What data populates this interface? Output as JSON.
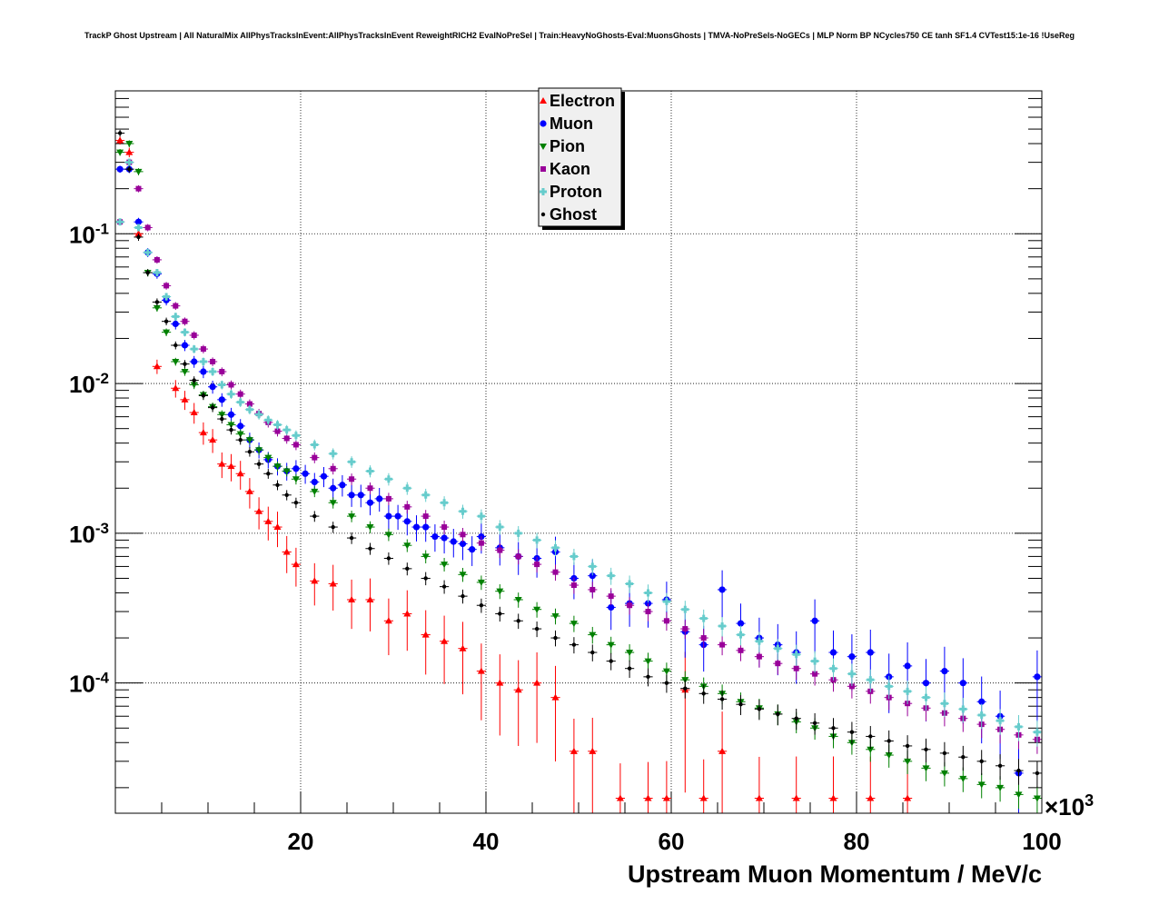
{
  "chart_data": {
    "type": "scatter",
    "title": "TrackP Ghost Upstream | All NaturalMix AllPhysTracksInEvent:AllPhysTracksInEvent ReweightRICH2 EvalNoPreSel | Train:HeavyNoGhosts-Eval:MuonsGhosts | TMVA-NoPreSels-NoGECs | MLP Norm BP NCycles750 CE tanh SF1.4 CVTest15:1e-16 !UseReg",
    "xlabel": "Upstream Muon Momentum / MeV/c",
    "x_multiplier_label": "×10",
    "x_multiplier_exponent": "3",
    "xlim": [
      0,
      100000
    ],
    "ylim": [
      1.35e-05,
      0.9
    ],
    "yscale": "log",
    "grid": true,
    "legend_position": "top-center",
    "x_ticks": [
      {
        "value": 20000,
        "label": "20"
      },
      {
        "value": 40000,
        "label": "40"
      },
      {
        "value": 60000,
        "label": "60"
      },
      {
        "value": 80000,
        "label": "80"
      },
      {
        "value": 100000,
        "label": "100"
      }
    ],
    "y_ticks": [
      {
        "value": 0.1,
        "base": "10",
        "exp": "-1"
      },
      {
        "value": 0.01,
        "base": "10",
        "exp": "-2"
      },
      {
        "value": 0.001,
        "base": "10",
        "exp": "-3"
      },
      {
        "value": 0.0001,
        "base": "10",
        "exp": "-4"
      }
    ],
    "series": [
      {
        "name": "Electron",
        "color": "#ff0000",
        "marker": "triangle-up",
        "x": [
          1000,
          2000,
          3000,
          5000,
          7000,
          8000,
          9000,
          10000,
          11000,
          12000,
          13000,
          14000,
          15000,
          16000,
          17000,
          18000,
          19000,
          20000,
          22000,
          24000,
          26000,
          28000,
          30000,
          32000,
          34000,
          36000,
          38000,
          40000,
          42000,
          44000,
          46000,
          48000,
          50000,
          52000,
          55000,
          58000,
          60000,
          62000,
          64000,
          66000,
          70000,
          74000,
          78000,
          82000,
          86000
        ],
        "y": [
          0.42,
          0.35,
          0.1,
          0.013,
          0.0093,
          0.0078,
          0.0064,
          0.0047,
          0.0042,
          0.0029,
          0.0028,
          0.0025,
          0.0019,
          0.0014,
          0.0012,
          0.0011,
          0.00075,
          0.00062,
          0.00048,
          0.00046,
          0.00036,
          0.00036,
          0.00026,
          0.00029,
          0.00021,
          0.00019,
          0.00017,
          0.00012,
          0.0001,
          9e-05,
          0.0001,
          8e-05,
          3.5e-05,
          3.5e-05,
          1.7e-05,
          1.7e-05,
          1.7e-05,
          9e-05,
          1.7e-05,
          3.5e-05,
          1.7e-05,
          1.7e-05,
          1.7e-05,
          1.7e-05,
          1.7e-05
        ]
      },
      {
        "name": "Muon",
        "color": "#0000ff",
        "marker": "circle",
        "x": [
          1000,
          2000,
          3000,
          4000,
          5000,
          6000,
          7000,
          8000,
          9000,
          10000,
          11000,
          12000,
          13000,
          14000,
          15000,
          16000,
          17000,
          18000,
          19000,
          20000,
          21000,
          22000,
          23000,
          24000,
          25000,
          26000,
          27000,
          28000,
          29000,
          30000,
          31000,
          32000,
          33000,
          34000,
          35000,
          36000,
          37000,
          38000,
          39000,
          40000,
          42000,
          44000,
          46000,
          48000,
          50000,
          52000,
          54000,
          56000,
          58000,
          60000,
          62000,
          64000,
          66000,
          68000,
          70000,
          72000,
          74000,
          76000,
          78000,
          80000,
          82000,
          84000,
          86000,
          88000,
          90000,
          92000,
          94000,
          96000,
          98000,
          100000
        ],
        "y": [
          0.27,
          0.27,
          0.12,
          0.075,
          0.054,
          0.036,
          0.025,
          0.018,
          0.014,
          0.012,
          0.0095,
          0.0078,
          0.0062,
          0.0052,
          0.0042,
          0.0036,
          0.0031,
          0.0028,
          0.0026,
          0.0027,
          0.0025,
          0.0022,
          0.0024,
          0.002,
          0.0021,
          0.0018,
          0.0018,
          0.0016,
          0.0017,
          0.0013,
          0.0013,
          0.0012,
          0.0011,
          0.0011,
          0.00095,
          0.00093,
          0.00088,
          0.00085,
          0.00078,
          0.00095,
          0.0008,
          0.0007,
          0.00068,
          0.00075,
          0.0005,
          0.00052,
          0.00032,
          0.00034,
          0.00034,
          0.00036,
          0.00022,
          0.00018,
          0.00042,
          0.00025,
          0.0002,
          0.00018,
          0.00016,
          0.00026,
          0.00016,
          0.00015,
          0.00016,
          0.00011,
          0.00013,
          0.0001,
          0.00012,
          0.0001,
          7.5e-05,
          6e-05,
          2.5e-05,
          0.00011
        ]
      },
      {
        "name": "Pion",
        "color": "#008000",
        "marker": "triangle-down",
        "x": [
          1000,
          2000,
          3000,
          4000,
          5000,
          6000,
          7000,
          8000,
          9000,
          10000,
          11000,
          12000,
          13000,
          14000,
          15000,
          16000,
          17000,
          18000,
          19000,
          20000,
          22000,
          24000,
          26000,
          28000,
          30000,
          32000,
          34000,
          36000,
          38000,
          40000,
          42000,
          44000,
          46000,
          48000,
          50000,
          52000,
          54000,
          56000,
          58000,
          60000,
          62000,
          64000,
          66000,
          68000,
          70000,
          72000,
          74000,
          76000,
          78000,
          80000,
          82000,
          84000,
          86000,
          88000,
          90000,
          92000,
          94000,
          96000,
          98000,
          100000
        ],
        "y": [
          0.35,
          0.4,
          0.26,
          0.055,
          0.032,
          0.022,
          0.014,
          0.012,
          0.0098,
          0.0084,
          0.007,
          0.0062,
          0.0053,
          0.0046,
          0.0042,
          0.0036,
          0.0032,
          0.0028,
          0.0026,
          0.0023,
          0.0019,
          0.0016,
          0.0013,
          0.0011,
          0.00098,
          0.00083,
          0.0007,
          0.00062,
          0.00053,
          0.00047,
          0.00041,
          0.00036,
          0.00031,
          0.00028,
          0.00025,
          0.00021,
          0.00018,
          0.00016,
          0.00014,
          0.00012,
          0.000105,
          9.5e-05,
          8.5e-05,
          7.5e-05,
          6.8e-05,
          6.2e-05,
          5.5e-05,
          5e-05,
          4.4e-05,
          4e-05,
          3.6e-05,
          3.3e-05,
          3e-05,
          2.7e-05,
          2.5e-05,
          2.3e-05,
          2.1e-05,
          2e-05,
          1.8e-05,
          1.7e-05
        ]
      },
      {
        "name": "Kaon",
        "color": "#990099",
        "marker": "square",
        "x": [
          1000,
          2000,
          3000,
          4000,
          5000,
          6000,
          7000,
          8000,
          9000,
          10000,
          11000,
          12000,
          13000,
          14000,
          15000,
          16000,
          17000,
          18000,
          19000,
          20000,
          22000,
          24000,
          26000,
          28000,
          30000,
          32000,
          34000,
          36000,
          38000,
          40000,
          42000,
          44000,
          46000,
          48000,
          50000,
          52000,
          54000,
          56000,
          58000,
          60000,
          62000,
          64000,
          66000,
          68000,
          70000,
          72000,
          74000,
          76000,
          78000,
          80000,
          82000,
          84000,
          86000,
          88000,
          90000,
          92000,
          94000,
          96000,
          98000,
          100000
        ],
        "y": [
          0.12,
          0.3,
          0.2,
          0.11,
          0.067,
          0.045,
          0.033,
          0.026,
          0.021,
          0.017,
          0.014,
          0.012,
          0.0098,
          0.0085,
          0.0073,
          0.0063,
          0.0055,
          0.0048,
          0.0043,
          0.0039,
          0.0032,
          0.0027,
          0.0023,
          0.002,
          0.0017,
          0.0015,
          0.0013,
          0.0011,
          0.00098,
          0.00086,
          0.00077,
          0.0007,
          0.00062,
          0.00055,
          0.00045,
          0.00042,
          0.00038,
          0.00033,
          0.0003,
          0.00026,
          0.00023,
          0.0002,
          0.00018,
          0.000165,
          0.00015,
          0.000135,
          0.000125,
          0.000115,
          0.000105,
          9.5e-05,
          8.8e-05,
          8e-05,
          7.3e-05,
          6.8e-05,
          6.3e-05,
          5.8e-05,
          5.3e-05,
          4.9e-05,
          4.5e-05,
          4.2e-05
        ]
      },
      {
        "name": "Proton",
        "color": "#66cccc",
        "marker": "cross",
        "x": [
          1000,
          2000,
          3000,
          4000,
          5000,
          6000,
          7000,
          8000,
          9000,
          10000,
          11000,
          12000,
          13000,
          14000,
          15000,
          16000,
          17000,
          18000,
          19000,
          20000,
          22000,
          24000,
          26000,
          28000,
          30000,
          32000,
          34000,
          36000,
          38000,
          40000,
          42000,
          44000,
          46000,
          48000,
          50000,
          52000,
          54000,
          56000,
          58000,
          60000,
          62000,
          64000,
          66000,
          68000,
          70000,
          72000,
          74000,
          76000,
          78000,
          80000,
          82000,
          84000,
          86000,
          88000,
          90000,
          92000,
          94000,
          96000,
          98000,
          100000
        ],
        "y": [
          0.12,
          0.3,
          0.11,
          0.075,
          0.055,
          0.038,
          0.028,
          0.022,
          0.017,
          0.014,
          0.012,
          0.0098,
          0.0085,
          0.0075,
          0.0067,
          0.0062,
          0.0057,
          0.0053,
          0.0049,
          0.0045,
          0.0039,
          0.0034,
          0.003,
          0.0026,
          0.0023,
          0.002,
          0.0018,
          0.0016,
          0.0014,
          0.0013,
          0.0011,
          0.001,
          0.0009,
          0.0008,
          0.0007,
          0.0006,
          0.00052,
          0.00046,
          0.0004,
          0.00035,
          0.00031,
          0.00027,
          0.00024,
          0.00021,
          0.00019,
          0.00017,
          0.000155,
          0.00014,
          0.000125,
          0.000115,
          0.000105,
          9.5e-05,
          8.8e-05,
          8e-05,
          7.3e-05,
          6.7e-05,
          6.1e-05,
          5.6e-05,
          5.1e-05,
          4.7e-05
        ]
      },
      {
        "name": "Ghost",
        "color": "#000000",
        "marker": "small-circle",
        "x": [
          1000,
          2000,
          3000,
          4000,
          5000,
          6000,
          7000,
          8000,
          9000,
          10000,
          11000,
          12000,
          13000,
          14000,
          15000,
          16000,
          17000,
          18000,
          19000,
          20000,
          22000,
          24000,
          26000,
          28000,
          30000,
          32000,
          34000,
          36000,
          38000,
          40000,
          42000,
          44000,
          46000,
          48000,
          50000,
          52000,
          54000,
          56000,
          58000,
          60000,
          62000,
          64000,
          66000,
          68000,
          70000,
          72000,
          74000,
          76000,
          78000,
          80000,
          82000,
          84000,
          86000,
          88000,
          90000,
          92000,
          94000,
          96000,
          98000,
          100000
        ],
        "y": [
          0.47,
          0.27,
          0.095,
          0.055,
          0.035,
          0.026,
          0.018,
          0.0135,
          0.0105,
          0.0083,
          0.0069,
          0.0058,
          0.0049,
          0.0042,
          0.0035,
          0.0029,
          0.0025,
          0.0021,
          0.0018,
          0.0016,
          0.0013,
          0.0011,
          0.00093,
          0.00079,
          0.00068,
          0.00058,
          0.0005,
          0.00044,
          0.00038,
          0.00033,
          0.00029,
          0.00026,
          0.00023,
          0.0002,
          0.00018,
          0.00016,
          0.00014,
          0.000125,
          0.00011,
          0.0001,
          9.2e-05,
          8.5e-05,
          7.8e-05,
          7.2e-05,
          6.7e-05,
          6.2e-05,
          5.8e-05,
          5.4e-05,
          5e-05,
          4.7e-05,
          4.4e-05,
          4.1e-05,
          3.8e-05,
          3.6e-05,
          3.4e-05,
          3.2e-05,
          3e-05,
          2.8e-05,
          2.6e-05,
          2.5e-05
        ]
      }
    ]
  }
}
